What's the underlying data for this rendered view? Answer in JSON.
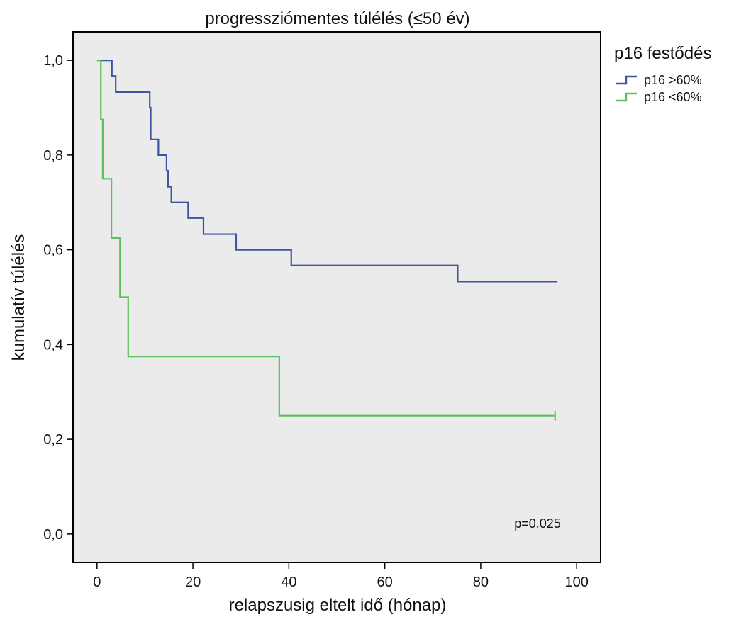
{
  "chart_data": {
    "type": "line",
    "subtype": "kaplan-meier step",
    "title": "progressziómentes túlélés (≤50 év)",
    "xlabel": "relapszusig eltelt idő (hónap)",
    "ylabel": "kumulatív túlélés",
    "xlim": [
      -5,
      105
    ],
    "ylim": [
      -0.06,
      1.06
    ],
    "xticks": [
      0,
      20,
      40,
      60,
      80,
      100
    ],
    "xtick_labels": [
      "0",
      "20",
      "40",
      "60",
      "80",
      "100"
    ],
    "yticks": [
      0.0,
      0.2,
      0.4,
      0.6,
      0.8,
      1.0
    ],
    "ytick_labels": [
      "0,0",
      "0,2",
      "0,4",
      "0,6",
      "0,8",
      "1,0"
    ],
    "grid": false,
    "background": "#ebebeb",
    "legend": {
      "title": "p16 festődés",
      "position": "outside-right"
    },
    "annotation": "p=0.025",
    "series": [
      {
        "name": "p16 >60%",
        "color": "#3c56a5",
        "steps": [
          {
            "t": 0,
            "s": 1.0
          },
          {
            "t": 3.1,
            "s": 0.967
          },
          {
            "t": 3.9,
            "s": 0.933
          },
          {
            "t": 11.0,
            "s": 0.9
          },
          {
            "t": 11.2,
            "s": 0.833
          },
          {
            "t": 12.8,
            "s": 0.8
          },
          {
            "t": 14.5,
            "s": 0.767
          },
          {
            "t": 14.8,
            "s": 0.733
          },
          {
            "t": 15.5,
            "s": 0.7
          },
          {
            "t": 19.0,
            "s": 0.667
          },
          {
            "t": 22.2,
            "s": 0.633
          },
          {
            "t": 29.0,
            "s": 0.6
          },
          {
            "t": 40.5,
            "s": 0.567
          },
          {
            "t": 75.2,
            "s": 0.533
          }
        ],
        "end": 96,
        "censored": []
      },
      {
        "name": "p16 <60%",
        "color": "#5cbf5c",
        "steps": [
          {
            "t": 0,
            "s": 1.0
          },
          {
            "t": 0.8,
            "s": 0.875
          },
          {
            "t": 1.2,
            "s": 0.75
          },
          {
            "t": 3.0,
            "s": 0.625
          },
          {
            "t": 4.8,
            "s": 0.5
          },
          {
            "t": 6.5,
            "s": 0.375
          },
          {
            "t": 38.0,
            "s": 0.25
          }
        ],
        "end": 95.5,
        "censored": [
          95.5
        ]
      }
    ]
  }
}
